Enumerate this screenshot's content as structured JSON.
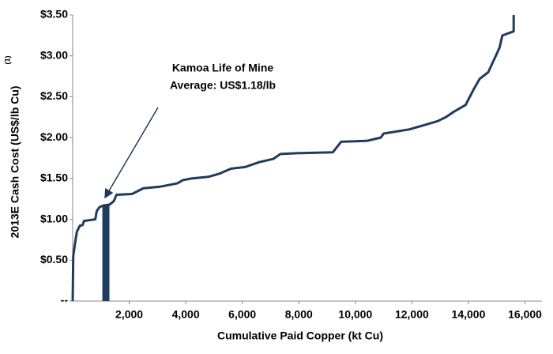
{
  "chart_data": {
    "type": "line",
    "x_label": "Cumulative Paid Copper (kt Cu)",
    "y_label": "2013E Cash Cost (US$/lb Cu)",
    "y_label_note": "(1)",
    "annotation": [
      "Kamoa Life of Mine",
      "Average: US$1.18/lb"
    ],
    "xlim": [
      0,
      16600
    ],
    "ylim": [
      0,
      3.5
    ],
    "xticks": [
      {
        "value": 2000,
        "label": "2,000"
      },
      {
        "value": 4000,
        "label": "4,000"
      },
      {
        "value": 6000,
        "label": "6,000"
      },
      {
        "value": 8000,
        "label": "8,000"
      },
      {
        "value": 10000,
        "label": "10,000"
      },
      {
        "value": 12000,
        "label": "12,000"
      },
      {
        "value": 14000,
        "label": "14,000"
      },
      {
        "value": 16000,
        "label": "16,000"
      }
    ],
    "yticks": [
      {
        "value": 0,
        "label": "--"
      },
      {
        "value": 0.5,
        "label": "$0.50"
      },
      {
        "value": 1,
        "label": "$1.00"
      },
      {
        "value": 1.5,
        "label": "$1.50"
      },
      {
        "value": 2,
        "label": "$2.00"
      },
      {
        "value": 2.5,
        "label": "$2.50"
      },
      {
        "value": 3,
        "label": "$3.00"
      },
      {
        "value": 3.5,
        "label": "$3.50"
      }
    ],
    "highlight": {
      "x": [
        1050,
        1300
      ],
      "value": 1.18,
      "color": "#1f3b5e"
    },
    "series": [
      {
        "color": "#1f3b5e",
        "x": [
          0,
          20,
          80,
          150,
          250,
          350,
          400,
          800,
          850,
          950,
          1100,
          1300,
          1450,
          1550,
          2100,
          2500,
          3100,
          3700,
          3900,
          4200,
          4800,
          5200,
          5600,
          6100,
          6600,
          7100,
          7350,
          8000,
          9200,
          9500,
          10400,
          10900,
          11000,
          11900,
          12400,
          12900,
          13200,
          13500,
          13900,
          14200,
          14400,
          14700,
          14900,
          15100,
          15200,
          15600,
          15600
        ],
        "values": [
          0,
          0.55,
          0.7,
          0.85,
          0.92,
          0.93,
          0.98,
          1.0,
          1.1,
          1.15,
          1.17,
          1.18,
          1.22,
          1.3,
          1.31,
          1.38,
          1.4,
          1.44,
          1.48,
          1.5,
          1.52,
          1.56,
          1.62,
          1.64,
          1.7,
          1.74,
          1.8,
          1.81,
          1.82,
          1.95,
          1.96,
          2.0,
          2.05,
          2.1,
          2.15,
          2.2,
          2.25,
          2.32,
          2.4,
          2.6,
          2.72,
          2.8,
          2.95,
          3.1,
          3.25,
          3.3,
          3.5
        ]
      }
    ]
  }
}
